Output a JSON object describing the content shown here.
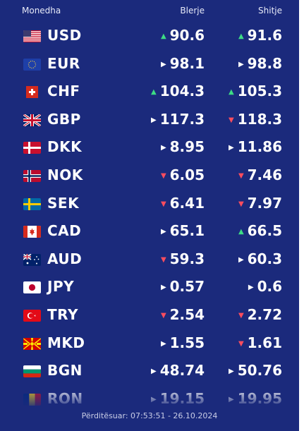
{
  "header": {
    "currency": "Monedha",
    "buy": "Blerje",
    "sell": "Shitje"
  },
  "rates": [
    {
      "code": "USD",
      "flag": "us-flag-icon",
      "buy": "90.6",
      "buy_trend": "up",
      "sell": "91.6",
      "sell_trend": "up"
    },
    {
      "code": "EUR",
      "flag": "eu-flag-icon",
      "buy": "98.1",
      "buy_trend": "flat",
      "sell": "98.8",
      "sell_trend": "flat"
    },
    {
      "code": "CHF",
      "flag": "ch-flag-icon",
      "buy": "104.3",
      "buy_trend": "up",
      "sell": "105.3",
      "sell_trend": "up"
    },
    {
      "code": "GBP",
      "flag": "gb-flag-icon",
      "buy": "117.3",
      "buy_trend": "flat",
      "sell": "118.3",
      "sell_trend": "down"
    },
    {
      "code": "DKK",
      "flag": "dk-flag-icon",
      "buy": "8.95",
      "buy_trend": "flat",
      "sell": "11.86",
      "sell_trend": "flat"
    },
    {
      "code": "NOK",
      "flag": "no-flag-icon",
      "buy": "6.05",
      "buy_trend": "down",
      "sell": "7.46",
      "sell_trend": "down"
    },
    {
      "code": "SEK",
      "flag": "se-flag-icon",
      "buy": "6.41",
      "buy_trend": "down",
      "sell": "7.97",
      "sell_trend": "down"
    },
    {
      "code": "CAD",
      "flag": "ca-flag-icon",
      "buy": "65.1",
      "buy_trend": "flat",
      "sell": "66.5",
      "sell_trend": "up"
    },
    {
      "code": "AUD",
      "flag": "au-flag-icon",
      "buy": "59.3",
      "buy_trend": "down",
      "sell": "60.3",
      "sell_trend": "flat"
    },
    {
      "code": "JPY",
      "flag": "jp-flag-icon",
      "buy": "0.57",
      "buy_trend": "flat",
      "sell": "0.6",
      "sell_trend": "flat"
    },
    {
      "code": "TRY",
      "flag": "tr-flag-icon",
      "buy": "2.54",
      "buy_trend": "down",
      "sell": "2.72",
      "sell_trend": "down"
    },
    {
      "code": "MKD",
      "flag": "mk-flag-icon",
      "buy": "1.55",
      "buy_trend": "flat",
      "sell": "1.61",
      "sell_trend": "down"
    },
    {
      "code": "BGN",
      "flag": "bg-flag-icon",
      "buy": "48.74",
      "buy_trend": "flat",
      "sell": "50.76",
      "sell_trend": "flat"
    },
    {
      "code": "RON",
      "flag": "ro-flag-icon",
      "buy": "19.15",
      "buy_trend": "flat",
      "sell": "19.95",
      "sell_trend": "flat"
    }
  ],
  "colors": {
    "background": "#1b2a7c",
    "up": "#3ddc84",
    "down": "#ff4d5e"
  },
  "footer": {
    "updated": "Përditësuar: 07:53:51 - 26.10.2024"
  }
}
